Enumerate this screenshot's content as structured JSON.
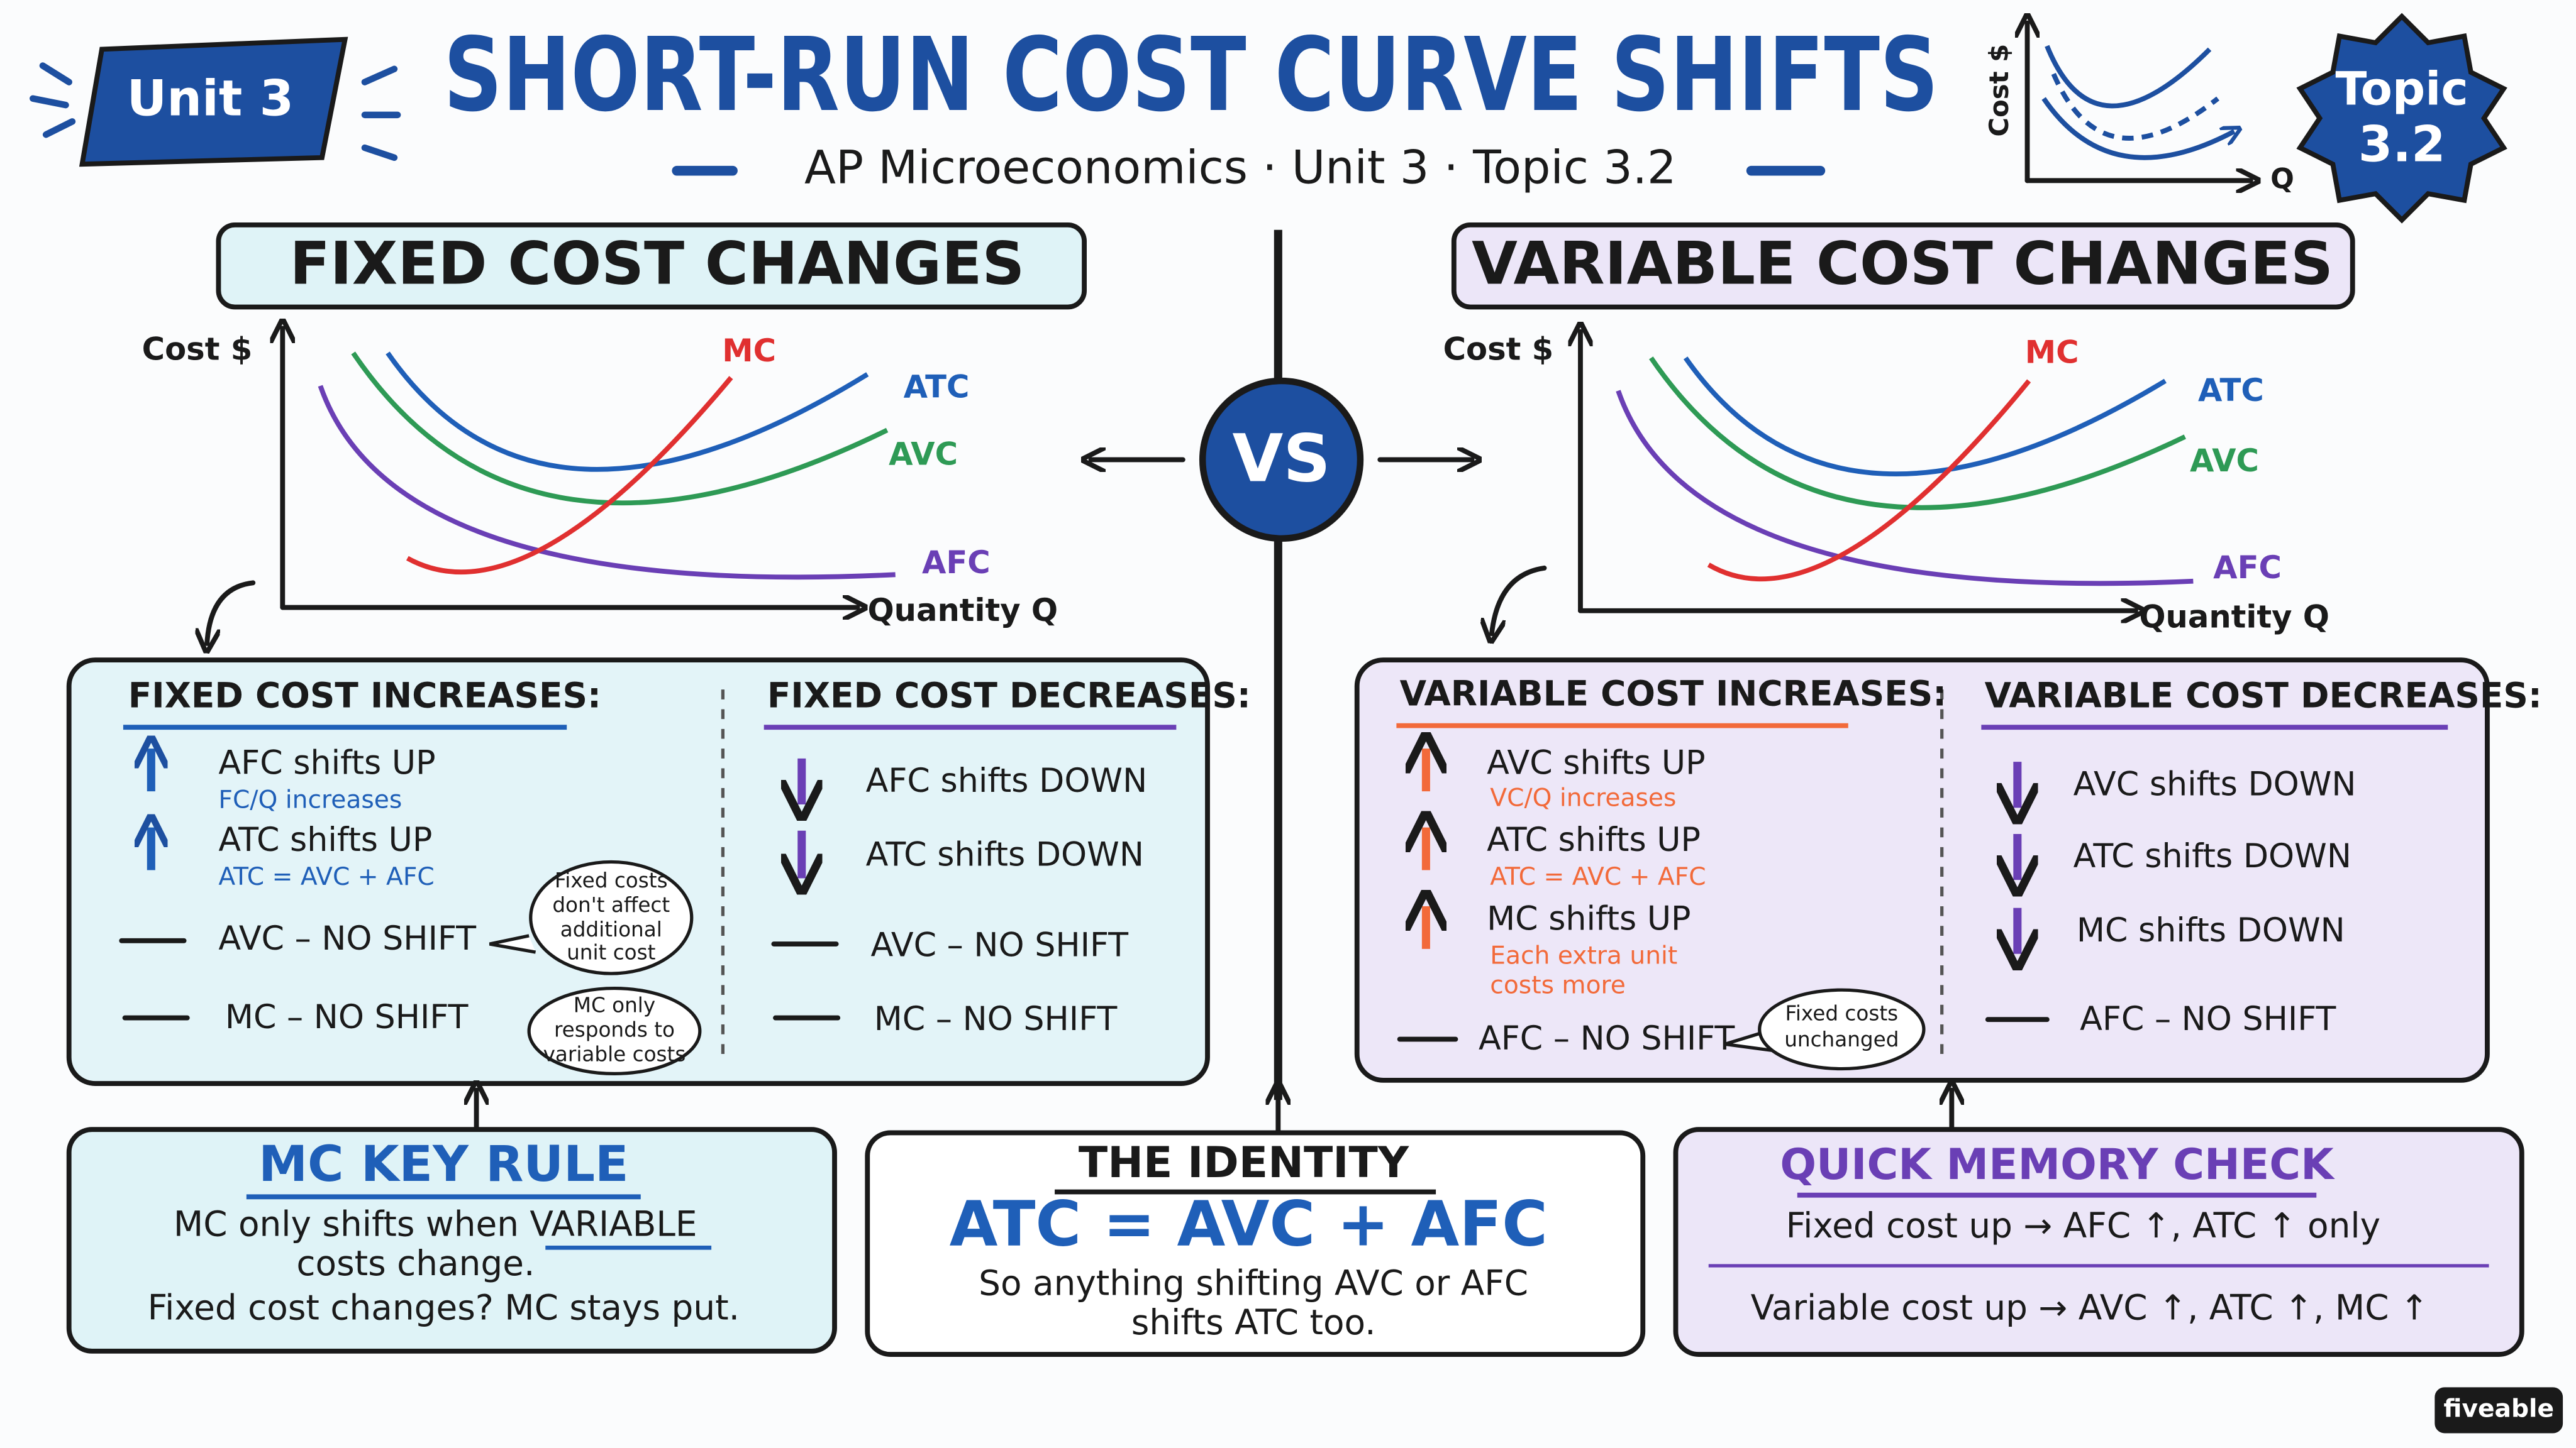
{
  "header": {
    "badge": "Unit 3",
    "title": "SHORT-RUN COST CURVE SHIFTS",
    "subtitle": "AP Microeconomics · Unit 3 · Topic 3.2",
    "icon": {
      "y_label": "Cost $",
      "x_label": "Q"
    },
    "topic_badge": [
      "Topic",
      "3.2"
    ]
  },
  "vs": "VS",
  "fixed": {
    "title": "FIXED COST CHANGES",
    "graph": {
      "y_label": "Cost $",
      "x_label": "Quantity Q",
      "curves": [
        "MC",
        "ATC",
        "AVC",
        "AFC"
      ]
    },
    "increases": {
      "heading": "FIXED COST INCREASES:",
      "items": [
        {
          "text": "AFC shifts UP",
          "note": [
            "FC/Q increases"
          ]
        },
        {
          "text": "ATC shifts UP",
          "note": [
            "ATC = AVC + AFC"
          ]
        },
        {
          "text": "AVC – NO SHIFT",
          "bubble": [
            "Fixed costs",
            "don't affect",
            "additional",
            "unit cost"
          ]
        },
        {
          "text": "MC – NO SHIFT",
          "bubble": [
            "MC only",
            "responds to",
            "variable costs"
          ]
        }
      ]
    },
    "decreases": {
      "heading": "FIXED COST DECREASES:",
      "items": [
        "AFC shifts DOWN",
        "ATC shifts DOWN",
        "AVC – NO SHIFT",
        "MC – NO SHIFT"
      ]
    }
  },
  "variable": {
    "title": "VARIABLE COST CHANGES",
    "graph": {
      "y_label": "Cost $",
      "x_label": "Quantity Q",
      "curves": [
        "MC",
        "ATC",
        "AVC",
        "AFC"
      ]
    },
    "increases": {
      "heading": "VARIABLE COST INCREASES:",
      "items": [
        {
          "text": "AVC shifts UP",
          "note": [
            "VC/Q increases"
          ]
        },
        {
          "text": "ATC shifts UP",
          "note": [
            "ATC = AVC + AFC"
          ]
        },
        {
          "text": "MC shifts UP",
          "note": [
            "Each extra unit",
            "costs more"
          ]
        },
        {
          "text": "AFC – NO SHIFT",
          "bubble": [
            "Fixed costs",
            "unchanged"
          ]
        }
      ]
    },
    "decreases": {
      "heading": "VARIABLE COST DECREASES:",
      "items": [
        "AVC shifts DOWN",
        "ATC shifts DOWN",
        "MC shifts DOWN",
        "AFC – NO SHIFT"
      ]
    }
  },
  "mc_rule": {
    "title": "MC KEY RULE",
    "lines": [
      "MC only shifts when VARIABLE",
      "costs change.",
      "Fixed cost changes? MC stays put."
    ]
  },
  "identity": {
    "title": "THE IDENTITY",
    "formula": "ATC = AVC + AFC",
    "lines": [
      "So anything shifting AVC or AFC",
      "shifts ATC too."
    ]
  },
  "memory": {
    "title": "QUICK MEMORY CHECK",
    "lines": [
      "Fixed cost up → AFC ↑, ATC ↑ only",
      "Variable cost up → AVC ↑, ATC ↑, MC ↑"
    ]
  },
  "logo": "fiveable"
}
